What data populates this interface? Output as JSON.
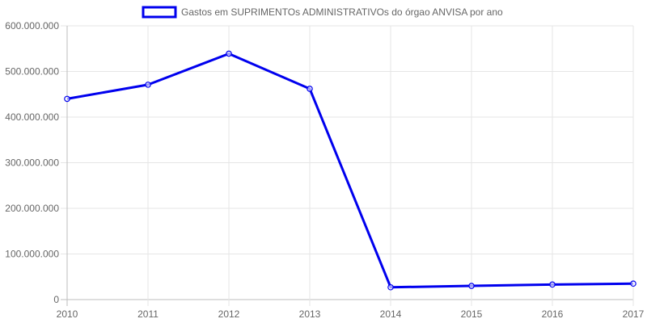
{
  "chart_data": {
    "type": "line",
    "title": "",
    "xlabel": "",
    "ylabel": "",
    "legend": "top",
    "grid": true,
    "categories": [
      "2010",
      "2011",
      "2012",
      "2013",
      "2014",
      "2015",
      "2016",
      "2017"
    ],
    "ylim": [
      0,
      600000000
    ],
    "yticks": [
      0,
      100000000,
      200000000,
      300000000,
      400000000,
      500000000,
      600000000
    ],
    "ytick_labels": [
      "0",
      "100.000.000",
      "200.000.000",
      "300.000.000",
      "400.000.000",
      "500.000.000",
      "600.000.000"
    ],
    "series": [
      {
        "name": "Gastos em SUPRIMENTOs ADMINISTRATIVOs do órgao ANVISA por ano",
        "color": "#0000ee",
        "values": [
          440000000,
          471000000,
          539000000,
          462000000,
          27000000,
          30000000,
          33000000,
          35000000
        ]
      }
    ]
  }
}
